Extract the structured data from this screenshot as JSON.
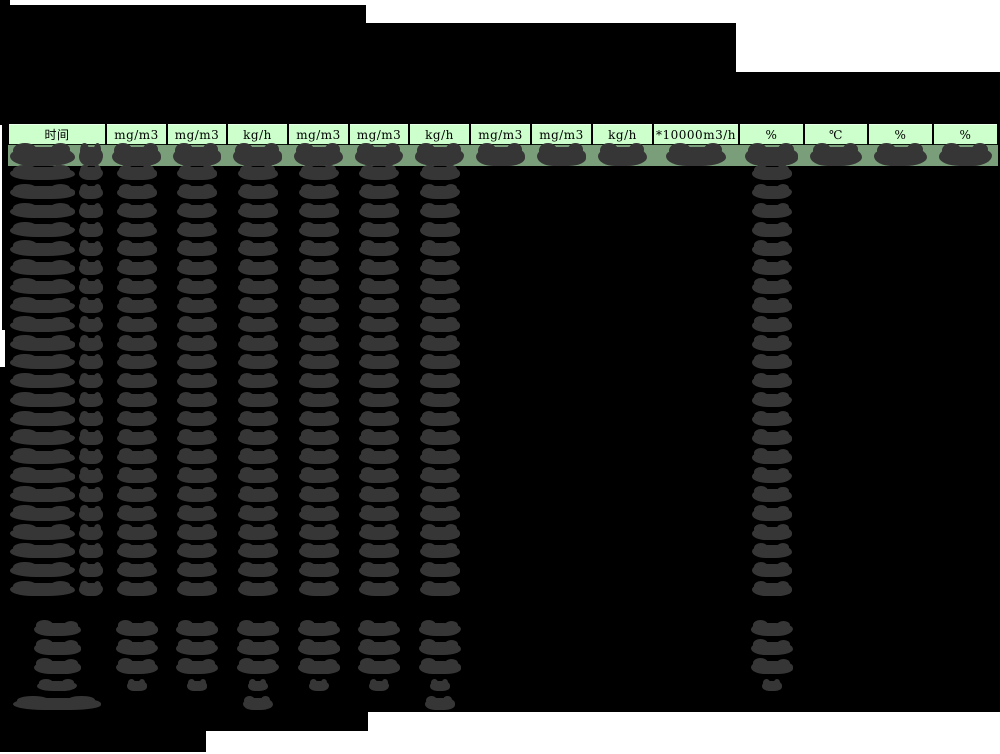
{
  "colors": {
    "page_background": "#000000",
    "unmasked_white": "#ffffff",
    "header_bg": "#ccffcc",
    "header_text": "#000000",
    "highlight_row_bg": "#7a9e7a",
    "redaction_blob": "#363636"
  },
  "table": {
    "header_labels": [
      "时间",
      "mg/m3",
      "mg/m3",
      "kg/h",
      "mg/m3",
      "mg/m3",
      "kg/h",
      "mg/m3",
      "mg/m3",
      "kg/h",
      "*10000m3/h",
      "%",
      "℃",
      "%",
      "%"
    ],
    "column_count": 15,
    "body": {
      "cells_redacted": true,
      "data_row_count": 24,
      "first_row_highlighted": true,
      "first_row_filled_columns": [
        0,
        1,
        2,
        3,
        4,
        5,
        6,
        7,
        8,
        9,
        10,
        11,
        12,
        13,
        14
      ],
      "other_rows_filled_columns": [
        0,
        1,
        2,
        3,
        4,
        5,
        6,
        11
      ],
      "summary_row_count": 4,
      "summary_rows_filled_columns": [
        0,
        1,
        2,
        3,
        4,
        5,
        6,
        11
      ],
      "footer_row_filled_columns": [
        0,
        3,
        6
      ]
    }
  }
}
